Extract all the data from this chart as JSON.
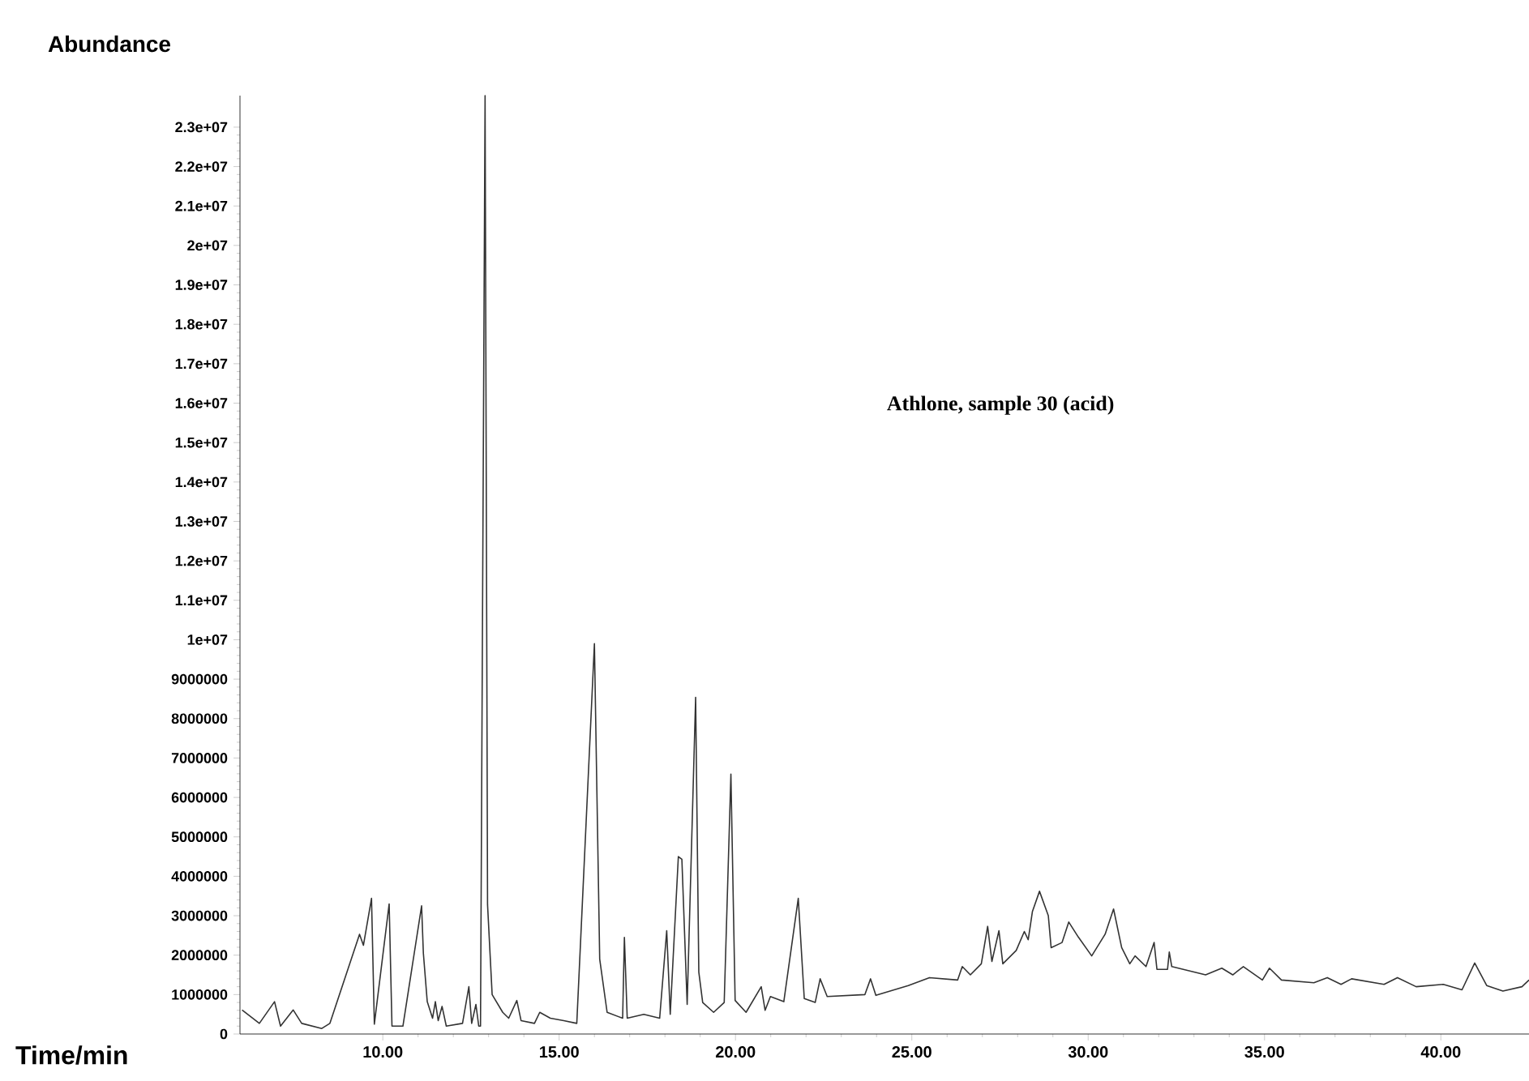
{
  "chart_data": {
    "type": "line",
    "xlabel": "Time/min",
    "ylabel": "Abundance",
    "annotations": [
      "Athlone, sample 30 (acid)"
    ],
    "xlim": [
      5.95,
      42.5
    ],
    "ylim": [
      0,
      23800000
    ],
    "xticks": [
      {
        "value": 10,
        "label": "10.00"
      },
      {
        "value": 15,
        "label": "15.00"
      },
      {
        "value": 20,
        "label": "20.00"
      },
      {
        "value": 25,
        "label": "25.00"
      },
      {
        "value": 30,
        "label": "30.00"
      },
      {
        "value": 35,
        "label": "35.00"
      },
      {
        "value": 40,
        "label": "40.00"
      }
    ],
    "yticks": [
      0,
      1000000,
      2000000,
      3000000,
      4000000,
      5000000,
      6000000,
      7000000,
      8000000,
      9000000,
      {
        "value": 10000000,
        "label": "1e+07"
      },
      {
        "value": 11000000,
        "label": "1.1e+07"
      },
      {
        "value": 12000000,
        "label": "1.2e+07"
      },
      {
        "value": 13000000,
        "label": "1.3e+07"
      },
      {
        "value": 14000000,
        "label": "1.4e+07"
      },
      {
        "value": 15000000,
        "label": "1.5e+07"
      },
      {
        "value": 16000000,
        "label": "1.6e+07"
      },
      {
        "value": 17000000,
        "label": "1.7e+07"
      },
      {
        "value": 18000000,
        "label": "1.8e+07"
      },
      {
        "value": 19000000,
        "label": "1.9e+07"
      },
      {
        "value": 20000000,
        "label": "2e+07"
      },
      {
        "value": 21000000,
        "label": "2.1e+07"
      },
      {
        "value": 22000000,
        "label": "2.2e+07"
      },
      {
        "value": 23000000,
        "label": "2.3e+07"
      }
    ],
    "grid": false,
    "series": [
      {
        "color": "#333333",
        "x": [
          6.01,
          6.5,
          6.93,
          7.1,
          7.46,
          7.7,
          8.27,
          8.5,
          9.34,
          9.45,
          9.68,
          9.76,
          10.18,
          10.26,
          10.57,
          11.1,
          11.15,
          11.26,
          11.41,
          11.49,
          11.57,
          11.68,
          11.8,
          12.26,
          12.44,
          12.52,
          12.64,
          12.72,
          12.77,
          12.9,
          12.97,
          13.1,
          13.4,
          13.57,
          13.8,
          13.92,
          14.3,
          14.45,
          14.75,
          15.13,
          15.5,
          16.0,
          16.15,
          16.36,
          16.8,
          16.85,
          16.93,
          17.4,
          17.85,
          18.05,
          18.15,
          18.38,
          18.48,
          18.63,
          18.87,
          18.96,
          19.07,
          19.38,
          19.68,
          19.87,
          19.99,
          20.3,
          20.73,
          20.84,
          20.99,
          21.37,
          21.78,
          21.95,
          22.26,
          22.4,
          22.6,
          23.67,
          23.83,
          23.98,
          24.9,
          25.5,
          26.3,
          26.43,
          26.66,
          26.97,
          27.15,
          27.27,
          27.47,
          27.58,
          27.96,
          28.19,
          28.3,
          28.42,
          28.62,
          28.87,
          28.95,
          29.26,
          29.45,
          29.72,
          30.1,
          30.48,
          30.72,
          30.95,
          31.18,
          31.33,
          31.64,
          31.87,
          31.95,
          32.25,
          32.3,
          32.37,
          33.33,
          33.79,
          34.1,
          34.4,
          34.94,
          35.14,
          35.48,
          36.4,
          36.78,
          37.17,
          37.47,
          38.39,
          38.77,
          39.3,
          40.07,
          40.6,
          40.96,
          41.3,
          41.76,
          42.3,
          42.5
        ],
        "values": [
          610000,
          270000,
          820000,
          200000,
          610000,
          270000,
          140000,
          270000,
          2530000,
          2250000,
          3440000,
          250000,
          3300000,
          200000,
          200000,
          3250000,
          2050000,
          820000,
          400000,
          820000,
          340000,
          700000,
          200000,
          270000,
          1200000,
          270000,
          750000,
          200000,
          200000,
          23800000,
          3280000,
          1000000,
          550000,
          400000,
          850000,
          340000,
          270000,
          550000,
          400000,
          340000,
          270000,
          9900000,
          1900000,
          550000,
          400000,
          2450000,
          400000,
          500000,
          400000,
          2620000,
          500000,
          4500000,
          4430000,
          750000,
          8540000,
          1570000,
          800000,
          550000,
          800000,
          6590000,
          850000,
          550000,
          1200000,
          600000,
          950000,
          820000,
          3440000,
          900000,
          800000,
          1400000,
          950000,
          1000000,
          1400000,
          980000,
          1230000,
          1430000,
          1370000,
          1710000,
          1500000,
          1780000,
          2730000,
          1840000,
          2620000,
          1780000,
          2120000,
          2600000,
          2390000,
          3110000,
          3620000,
          3000000,
          2190000,
          2320000,
          2840000,
          2460000,
          1980000,
          2530000,
          3170000,
          2190000,
          1780000,
          1980000,
          1710000,
          2320000,
          1640000,
          1640000,
          2080000,
          1710000,
          1500000,
          1670000,
          1500000,
          1710000,
          1370000,
          1670000,
          1370000,
          1300000,
          1430000,
          1260000,
          1400000,
          1260000,
          1430000,
          1200000,
          1260000,
          1120000,
          1800000,
          1230000,
          1090000,
          1200000,
          1370000
        ]
      }
    ]
  }
}
